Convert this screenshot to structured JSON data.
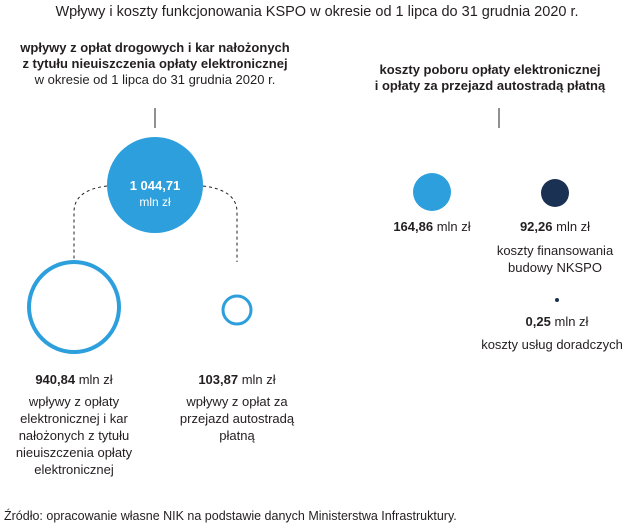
{
  "title": "Wpływy i koszty funkcjonowania KSPO w okresie od 1 lipca do 31 grudnia 2020 r.",
  "left_header": {
    "line1": "wpływy z opłat drogowych i kar nałożonych",
    "line2": "z tytułu nieuiszczenia opłaty elektronicznej",
    "line3": "w okresie od 1 lipca do 31 grudnia 2020 r."
  },
  "right_header": {
    "line1": "koszty poboru opłaty elektronicznej",
    "line2": "i opłaty za przejazd autostradą płatną"
  },
  "total": {
    "value": "1 044,71",
    "unit": "mln zł"
  },
  "income_items": [
    {
      "value": "940,84",
      "unit": "mln zł",
      "desc": [
        "wpływy z opłaty",
        "elektronicznej i kar",
        "nałożonych z tytułu",
        "nieuiszczenia opłaty",
        "elektronicznej"
      ]
    },
    {
      "value": "103,87",
      "unit": "mln zł",
      "desc": [
        "wpływy z opłat za",
        "przejazd autostradą",
        "płatną"
      ]
    }
  ],
  "cost_items": [
    {
      "value": "164,86",
      "unit": "mln zł",
      "desc": []
    },
    {
      "value": "92,26",
      "unit": "mln zł",
      "desc": [
        "koszty finansowania",
        "budowy NKSPO"
      ]
    },
    {
      "value": "0,25",
      "unit": "mln zł",
      "desc": [
        "koszty usług doradczych"
      ]
    }
  ],
  "colors": {
    "light_blue": "#2c9fdc",
    "dark_navy": "#1b3153",
    "text": "#231f20"
  },
  "source": "Źródło: opracowanie własne NIK na podstawie danych Ministerstwa Infrastruktury."
}
